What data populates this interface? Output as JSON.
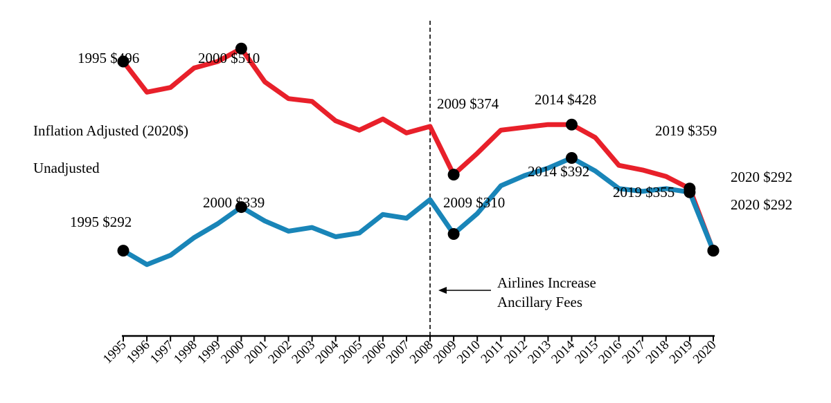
{
  "chart_data": {
    "type": "line",
    "title": "",
    "xlabel": "",
    "ylabel": "",
    "categories": [
      "1995",
      "1996",
      "1997",
      "1998",
      "1999",
      "2000",
      "2001",
      "2002",
      "2003",
      "2004",
      "2005",
      "2006",
      "2007",
      "2008",
      "2009",
      "2010",
      "2011",
      "2012",
      "2013",
      "2014",
      "2015",
      "2016",
      "2017",
      "2018",
      "2019",
      "2020"
    ],
    "ylim": [
      200,
      540
    ],
    "series": [
      {
        "name": "Inflation Adjusted (2020$)",
        "color": "#e8202a",
        "values": [
          496,
          463,
          468,
          489,
          496,
          510,
          474,
          456,
          453,
          432,
          422,
          434,
          419,
          426,
          374,
          397,
          422,
          425,
          428,
          428,
          414,
          384,
          379,
          372,
          359,
          292
        ]
      },
      {
        "name": "Unadjusted",
        "color": "#1985b8",
        "values": [
          292,
          277,
          287,
          306,
          321,
          339,
          324,
          313,
          317,
          307,
          311,
          331,
          327,
          347,
          310,
          332,
          362,
          373,
          381,
          392,
          378,
          359,
          356,
          359,
          355,
          292
        ]
      }
    ],
    "annotations": {
      "series_labels": {
        "adjusted": "Inflation Adjusted (2020$)",
        "unadjusted": "Unadjusted"
      },
      "adjusted_points": [
        {
          "year": "1995",
          "text": "1995 $496"
        },
        {
          "year": "2000",
          "text": "2000 $510"
        },
        {
          "year": "2009",
          "text": "2009 $374"
        },
        {
          "year": "2014",
          "text": "2014 $428"
        },
        {
          "year": "2019",
          "text": "2019 $359"
        },
        {
          "year": "2020",
          "text": "2020 $292"
        }
      ],
      "unadjusted_points": [
        {
          "year": "1995",
          "text": "1995 $292"
        },
        {
          "year": "2000",
          "text": "2000 $339"
        },
        {
          "year": "2009",
          "text": "2009 $310"
        },
        {
          "year": "2014",
          "text": "2014 $392"
        },
        {
          "year": "2019",
          "text": "2019 $355"
        },
        {
          "year": "2020",
          "text": "2020 $292"
        }
      ],
      "event_marker": {
        "year": "2008",
        "line1": "Airlines Increase",
        "line2": "Ancillary Fees"
      }
    }
  }
}
